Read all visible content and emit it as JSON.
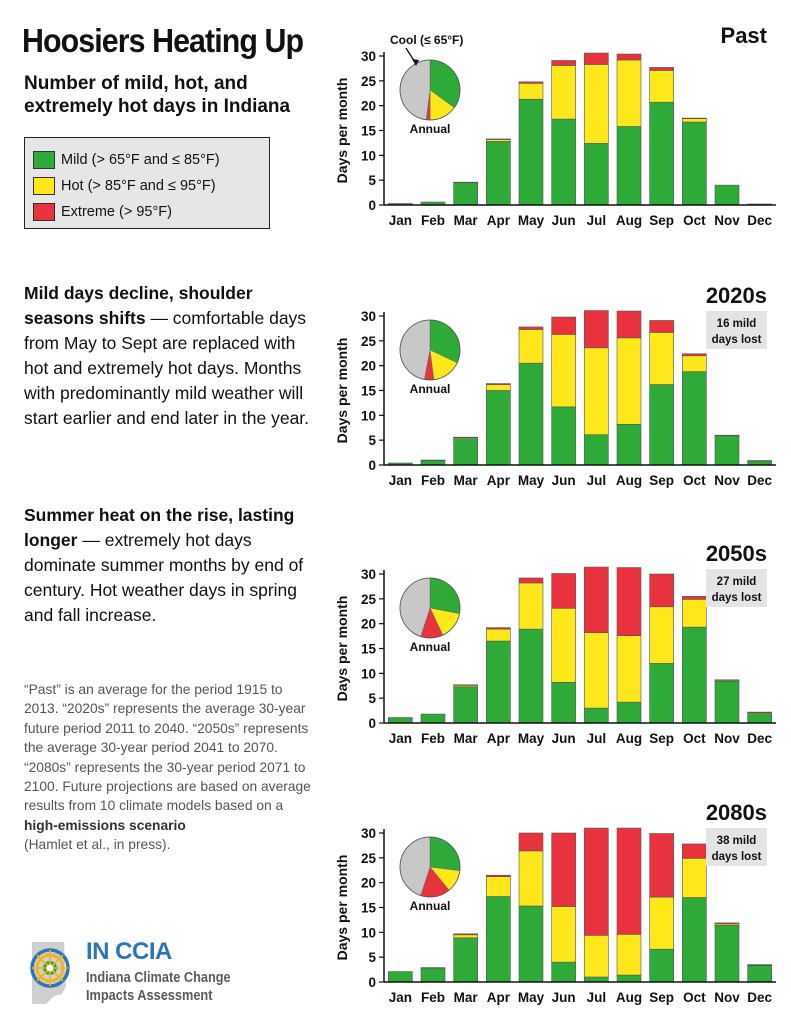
{
  "header": {
    "title": "Hoosiers Heating Up",
    "subtitle": "Number of mild, hot, and extremely hot days in Indiana"
  },
  "legend": [
    {
      "label": "Mild (> 65°F and ≤ 85°F)",
      "color": "#2eaa38"
    },
    {
      "label": "Hot (> 85°F and ≤ 95°F)",
      "color": "#ffe81a"
    },
    {
      "label": "Extreme (> 95°F)",
      "color": "#e8333f"
    }
  ],
  "sections": [
    {
      "lead": "Mild days decline, shoulder seasons shifts",
      "body": " — comfortable days from May to Sept are replaced with hot and extremely hot days. Months with predominantly mild weather will start earlier and end later in the year."
    },
    {
      "lead": "Summer heat on the rise, lasting longer",
      "body": " — extremely hot days dominate summer months by end of century. Hot weather days in spring and fall increase."
    }
  ],
  "note": {
    "text": "“Past” is an average for the period 1915 to 2013. “2020s” represents the average 30-year future period 2011 to 2040. “2050s” represents the average 30-year period 2041 to 2070. “2080s” represents the 30-year period 2071 to 2100. Future projections are based on average results from 10 climate models based on a ",
    "strong": "high-emissions scenario",
    "citation": "(Hamlet et al., in press)."
  },
  "logo": {
    "title": "IN CCIA",
    "line1": "Indiana Climate Change",
    "line2": "Impacts Assessment"
  },
  "colors": {
    "mild": "#2eaa38",
    "hot": "#ffe81a",
    "extreme": "#e8333f",
    "cool": "#c8c8c8"
  },
  "chart_data": [
    {
      "type": "bar",
      "stacked": true,
      "title": "Past",
      "ylabel": "Days per month",
      "ylim": [
        0,
        30
      ],
      "yticks": [
        0,
        5,
        10,
        15,
        20,
        25,
        30
      ],
      "categories": [
        "Jan",
        "Feb",
        "Mar",
        "Apr",
        "May",
        "Jun",
        "Jul",
        "Aug",
        "Sep",
        "Oct",
        "Nov",
        "Dec"
      ],
      "series": [
        {
          "key": "mild",
          "values": [
            0.3,
            0.6,
            4.5,
            12.8,
            21.3,
            17.3,
            12.4,
            15.8,
            20.7,
            16.7,
            4.0,
            0.2
          ]
        },
        {
          "key": "hot",
          "values": [
            0,
            0,
            0.1,
            0.4,
            3.2,
            10.8,
            15.9,
            13.4,
            6.4,
            0.7,
            0,
            0
          ]
        },
        {
          "key": "extreme",
          "values": [
            0,
            0,
            0,
            0.1,
            0.3,
            1.0,
            2.3,
            1.2,
            0.6,
            0.1,
            0,
            0
          ]
        }
      ],
      "pie": {
        "label": "Annual",
        "cool_label": "Cool (≤ 65°F)",
        "values": {
          "mild": 0.35,
          "hot": 0.15,
          "extreme": 0.02,
          "cool": 0.48
        }
      }
    },
    {
      "type": "bar",
      "stacked": true,
      "title": "2020s",
      "ylabel": "Days per month",
      "ylim": [
        0,
        30
      ],
      "yticks": [
        0,
        5,
        10,
        15,
        20,
        25,
        30
      ],
      "categories": [
        "Jan",
        "Feb",
        "Mar",
        "Apr",
        "May",
        "Jun",
        "Jul",
        "Aug",
        "Sep",
        "Oct",
        "Nov",
        "Dec"
      ],
      "series": [
        {
          "key": "mild",
          "values": [
            0.4,
            0.9,
            5.3,
            15.0,
            20.5,
            11.7,
            6.1,
            8.2,
            16.2,
            18.8,
            5.9,
            0.8
          ]
        },
        {
          "key": "hot",
          "values": [
            0,
            0,
            0.2,
            1.2,
            6.8,
            14.6,
            17.5,
            17.4,
            10.5,
            3.2,
            0,
            0
          ]
        },
        {
          "key": "extreme",
          "values": [
            0,
            0.1,
            0.1,
            0.2,
            0.5,
            3.5,
            7.5,
            5.4,
            2.4,
            0.4,
            0.1,
            0.1
          ]
        }
      ],
      "pie": {
        "label": "Annual",
        "values": {
          "mild": 0.32,
          "hot": 0.16,
          "extreme": 0.05,
          "cool": 0.47
        }
      },
      "annotation": [
        "16 mild",
        "days lost"
      ]
    },
    {
      "type": "bar",
      "stacked": true,
      "title": "2050s",
      "ylabel": "Days per month",
      "ylim": [
        0,
        30
      ],
      "yticks": [
        0,
        5,
        10,
        15,
        20,
        25,
        30
      ],
      "categories": [
        "Jan",
        "Feb",
        "Mar",
        "Apr",
        "May",
        "Jun",
        "Jul",
        "Aug",
        "Sep",
        "Oct",
        "Nov",
        "Dec"
      ],
      "series": [
        {
          "key": "mild",
          "values": [
            1.1,
            1.8,
            7.3,
            16.5,
            18.9,
            8.2,
            3.0,
            4.2,
            12.0,
            19.3,
            8.4,
            1.9
          ]
        },
        {
          "key": "hot",
          "values": [
            0,
            0,
            0.3,
            2.4,
            9.3,
            14.9,
            15.2,
            13.4,
            11.4,
            5.6,
            0.2,
            0.2
          ]
        },
        {
          "key": "extreme",
          "values": [
            0,
            0,
            0.1,
            0.3,
            1.0,
            7.0,
            13.2,
            13.7,
            6.6,
            0.6,
            0.1,
            0.1
          ]
        }
      ],
      "pie": {
        "label": "Annual",
        "values": {
          "mild": 0.28,
          "hot": 0.15,
          "extreme": 0.12,
          "cool": 0.45
        }
      },
      "annotation": [
        "27 mild",
        "days lost"
      ]
    },
    {
      "type": "bar",
      "stacked": true,
      "title": "2080s",
      "ylabel": "Days per month",
      "ylim": [
        0,
        30
      ],
      "yticks": [
        0,
        5,
        10,
        15,
        20,
        25,
        30
      ],
      "categories": [
        "Jan",
        "Feb",
        "Mar",
        "Apr",
        "May",
        "Jun",
        "Jul",
        "Aug",
        "Sep",
        "Oct",
        "Nov",
        "Dec"
      ],
      "series": [
        {
          "key": "mild",
          "values": [
            2.1,
            2.8,
            8.9,
            17.2,
            15.3,
            4.0,
            1.0,
            1.4,
            6.6,
            17.0,
            11.4,
            3.3
          ]
        },
        {
          "key": "hot",
          "values": [
            0,
            0.1,
            0.6,
            4.0,
            11.1,
            11.2,
            8.4,
            8.2,
            10.5,
            7.9,
            0.3,
            0.1
          ]
        },
        {
          "key": "extreme",
          "values": [
            0,
            0,
            0.2,
            0.3,
            3.6,
            14.8,
            21.6,
            21.4,
            12.8,
            2.9,
            0.2,
            0.1
          ]
        }
      ],
      "pie": {
        "label": "Annual",
        "values": {
          "mild": 0.27,
          "hot": 0.12,
          "extreme": 0.16,
          "cool": 0.45
        }
      },
      "annotation": [
        "38 mild",
        "days lost"
      ]
    }
  ]
}
